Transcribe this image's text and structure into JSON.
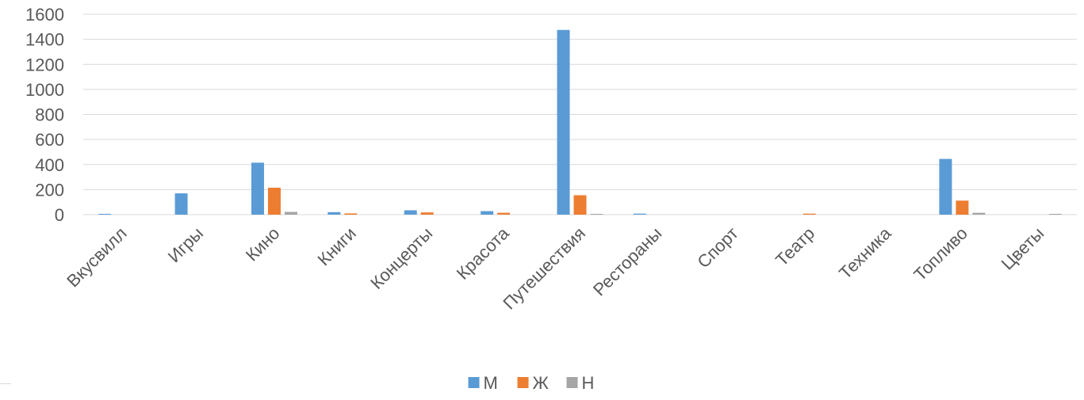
{
  "chart_data": {
    "type": "bar",
    "categories": [
      "Вкусвилл",
      "Игры",
      "Кино",
      "Книги",
      "Концерты",
      "Красота",
      "Путешествия",
      "Рестораны",
      "Спорт",
      "Театр",
      "Техника",
      "Топливо",
      "Цветы"
    ],
    "series": [
      {
        "name": "М",
        "color": "#5B9BD5",
        "values": [
          2,
          170,
          415,
          20,
          35,
          28,
          1475,
          8,
          0,
          0,
          0,
          445,
          0
        ]
      },
      {
        "name": "Ж",
        "color": "#ED7D31",
        "values": [
          0,
          0,
          215,
          10,
          18,
          15,
          155,
          0,
          0,
          8,
          0,
          112,
          0
        ]
      },
      {
        "name": "Н",
        "color": "#A5A5A5",
        "values": [
          0,
          0,
          22,
          0,
          0,
          0,
          5,
          0,
          0,
          0,
          0,
          15,
          3
        ]
      }
    ],
    "ylim": [
      0,
      1600
    ],
    "yticks": [
      "0",
      "200",
      "400",
      "600",
      "800",
      "1000",
      "1200",
      "1400",
      "1600"
    ],
    "grid": true,
    "legend_position": "bottom"
  }
}
